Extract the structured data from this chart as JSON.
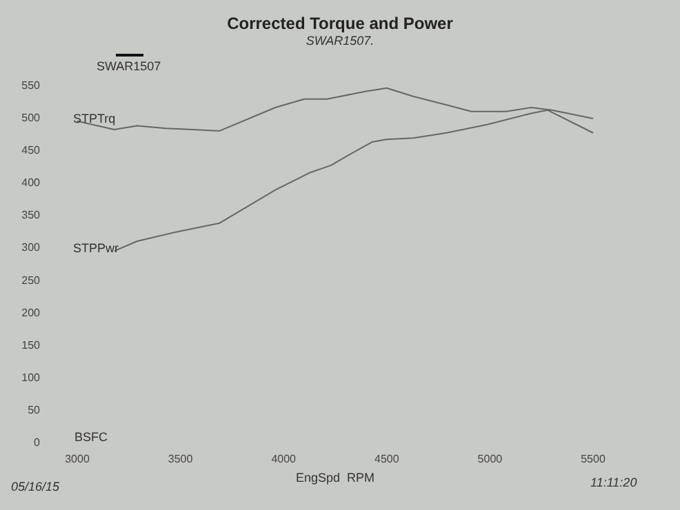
{
  "chart_data": {
    "type": "line",
    "title": "Corrected Torque and Power",
    "subtitle": "SWAR1507.",
    "xlabel": "EngSpd  RPM",
    "legend_title": "SWAR1507",
    "x": [
      3000,
      3180,
      3290,
      3430,
      3690,
      3960,
      4100,
      4210,
      4400,
      4500,
      4630,
      4790,
      4910,
      5080,
      5200,
      5300,
      5500
    ],
    "series": [
      {
        "name": "STPTrq",
        "color": "#666666",
        "values": [
          495,
          482,
          488,
          484,
          480,
          516,
          529,
          529,
          541,
          546,
          533,
          520,
          510,
          510,
          516,
          512,
          499
        ]
      },
      {
        "name": "STPPwr",
        "color": "#666666",
        "x": [
          3180,
          3290,
          3490,
          3690,
          3960,
          4130,
          4230,
          4300,
          4430,
          4500,
          4630,
          4790,
          4990,
          5200,
          5280,
          5500
        ],
        "values": [
          295,
          310,
          325,
          338,
          389,
          416,
          427,
          440,
          463,
          467,
          469,
          477,
          490,
          507,
          512,
          477
        ]
      }
    ],
    "xlim": [
      3000,
      5500
    ],
    "xticks": [
      3000,
      3500,
      4000,
      4500,
      5000,
      5500
    ],
    "ylim": [
      0,
      550
    ],
    "yticks": [
      0,
      50,
      100,
      150,
      200,
      250,
      300,
      350,
      400,
      450,
      500,
      550
    ],
    "annotations": [
      "BSFC",
      "05/16/15",
      "11:11:20"
    ],
    "grid": false,
    "legend": false,
    "marker": "none",
    "line_style": "solid"
  }
}
